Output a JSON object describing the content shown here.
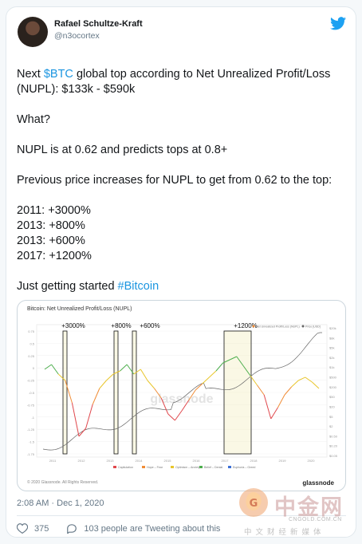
{
  "tweet": {
    "author_name": "Rafael Schultze-Kraft",
    "author_handle": "@n3ocortex",
    "lines": [
      {
        "text": "Next "
      },
      {
        "text": "$BTC",
        "link": true
      },
      {
        "text": " global top according to Net Unrealized Profit/Loss (NUPL): $133k - $590k\n\nWhat?\n\nNUPL is at 0.62 and predicts tops at 0.8+\n\nPrevious price increases for NUPL to get from 0.62 to the top:\n\n2011: +3000%\n2013: +800%\n2013: +600%\n2017: +1200%\n\nJust getting started "
      },
      {
        "text": "#Bitcoin",
        "link": true
      }
    ],
    "timestamp": "2:08 AM · Dec 1, 2020",
    "likes": "375",
    "retweet_text": "103 people are Tweeting about this"
  },
  "chart_data": {
    "type": "line",
    "title": "Bitcoin: Net Unrealized Profit/Loss (NUPL)",
    "annotations": [
      "+3000%",
      "+800%",
      "+600%",
      "+1200%"
    ],
    "x": [
      "2011",
      "2012",
      "2013",
      "2014",
      "2015",
      "2016",
      "2017",
      "2018",
      "2019",
      "2020"
    ],
    "y_left_ticks": [
      "0.75",
      "0.5",
      "0.25",
      "0",
      "-0.25",
      "-0.5",
      "-0.75",
      "-1",
      "-1.25",
      "-1.5",
      "-1.75"
    ],
    "y_right_ticks": [
      "$20k",
      "$8k",
      "$5k",
      "$2k",
      "$1k",
      "$500",
      "$200",
      "$50",
      "$20",
      "$5",
      "$2",
      "$0.50",
      "$0.20",
      "$0.05"
    ],
    "legend_top": [
      "Net Unrealized Profit/Loss (NUPL)",
      "Price [USD]"
    ],
    "legend_bottom": [
      "Capitulation",
      "Hope – Fear",
      "Optimism – Anxiety",
      "Belief – Denial",
      "Euphoria – Greed"
    ],
    "watermark": "glassnode",
    "footer": "© 2020 Glassnode. All Rights Reserved.",
    "brand": "glassnode"
  },
  "watermark": {
    "cn": "中金网",
    "url": "CNGOLD.COM.CN",
    "sub": "中文财经新媒体"
  },
  "colors": {
    "link": "#1b95e0",
    "twitter_blue": "#1da1f2",
    "green": "#4cae4c",
    "yellow": "#e8c52a",
    "orange": "#f08c36",
    "red": "#e0474c"
  }
}
